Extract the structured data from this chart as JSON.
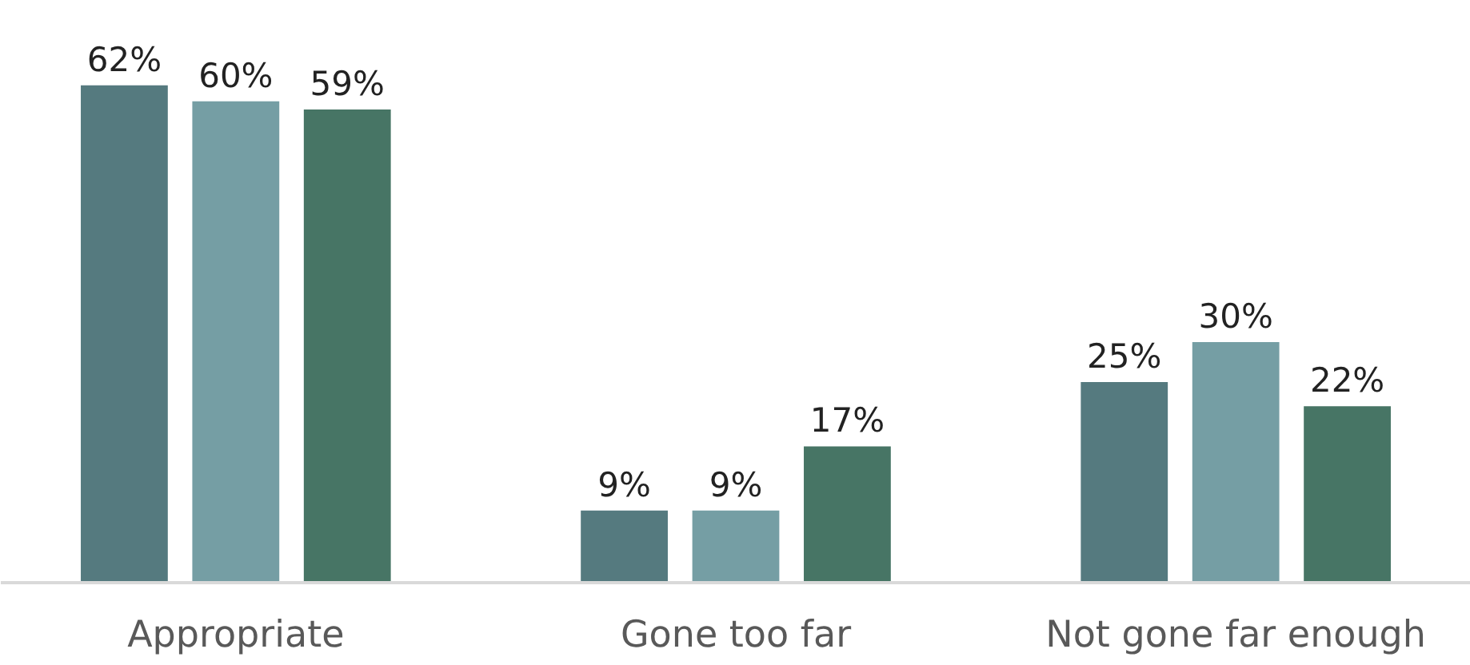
{
  "chart_data": {
    "type": "bar",
    "categories": [
      "Appropriate",
      "Gone too far",
      "Not gone far enough"
    ],
    "series": [
      {
        "color": "#557a7f",
        "values": [
          62,
          9,
          25
        ],
        "value_labels": [
          "62%",
          "9%",
          "25%"
        ]
      },
      {
        "color": "#759ea4",
        "values": [
          60,
          9,
          30
        ],
        "value_labels": [
          "60%",
          "9%",
          "30%"
        ]
      },
      {
        "color": "#477565",
        "values": [
          59,
          17,
          22
        ],
        "value_labels": [
          "59%",
          "17%",
          "22%"
        ]
      }
    ],
    "grid": false
  }
}
